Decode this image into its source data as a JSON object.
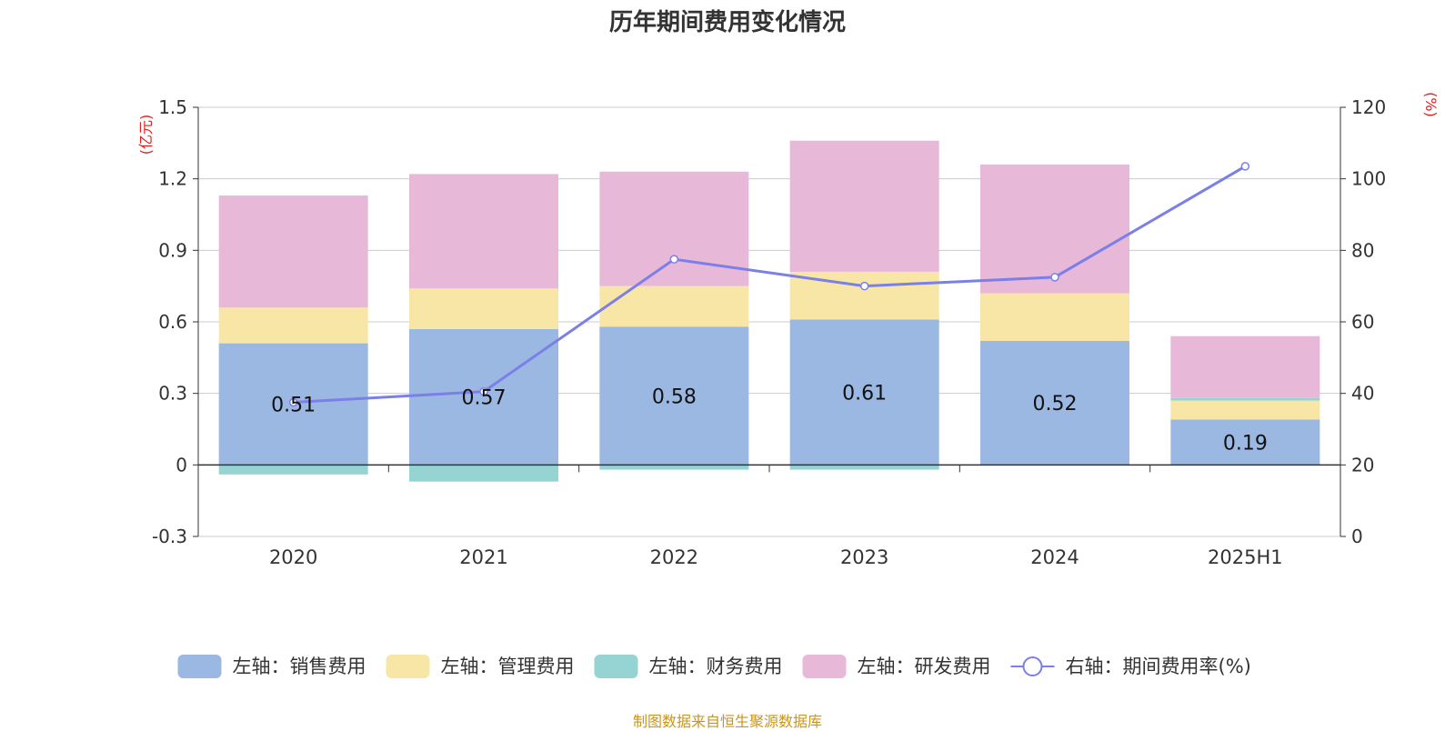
{
  "title": "历年期间费用变化情况",
  "footer": "制图数据来自恒生聚源数据库",
  "chart_data": {
    "type": "bar",
    "categories": [
      "2020",
      "2021",
      "2022",
      "2023",
      "2024",
      "2025H1"
    ],
    "stacked": true,
    "left_axis": {
      "unit": "(亿元)",
      "range": [
        -0.3,
        1.5
      ],
      "ticks": [
        "-0.3",
        "0",
        "0.3",
        "0.6",
        "0.9",
        "1.2",
        "1.5"
      ]
    },
    "right_axis": {
      "unit": "(%)",
      "range": [
        0,
        120
      ],
      "ticks": [
        "0",
        "20",
        "40",
        "60",
        "80",
        "100",
        "120"
      ]
    },
    "grid": true,
    "legend_position": "bottom",
    "series": [
      {
        "name": "左轴：销售费用",
        "axis": "left",
        "type": "bar",
        "color": "#9bb8e2",
        "values": [
          0.51,
          0.57,
          0.58,
          0.61,
          0.52,
          0.19
        ],
        "labels": [
          "0.51",
          "0.57",
          "0.58",
          "0.61",
          "0.52",
          "0.19"
        ]
      },
      {
        "name": "左轴：管理费用",
        "axis": "left",
        "type": "bar",
        "color": "#f8e6a6",
        "values": [
          0.15,
          0.17,
          0.17,
          0.2,
          0.2,
          0.08
        ]
      },
      {
        "name": "左轴：财务费用",
        "axis": "left",
        "type": "bar",
        "color": "#96d4d4",
        "values": [
          -0.04,
          -0.07,
          -0.02,
          -0.02,
          0.0,
          0.01
        ]
      },
      {
        "name": "左轴：研发费用",
        "axis": "left",
        "type": "bar",
        "color": "#e8b8d8",
        "values": [
          0.47,
          0.48,
          0.48,
          0.55,
          0.54,
          0.26
        ]
      },
      {
        "name": "右轴：期间费用率(%)",
        "axis": "right",
        "type": "line",
        "color": "#7b7fe8",
        "values": [
          37.5,
          40.5,
          77.5,
          70.0,
          72.5,
          103.5
        ]
      }
    ]
  }
}
